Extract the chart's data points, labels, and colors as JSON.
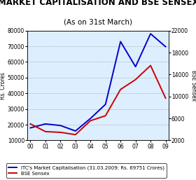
{
  "title": "MARKET CAPITALISATION AND BSE SENSEX",
  "subtitle": "(As on 31st March)",
  "years": [
    "00",
    "01",
    "02",
    "03",
    "04",
    "05",
    "06",
    "07",
    "08",
    "09"
  ],
  "market_cap": [
    18000,
    20500,
    19500,
    16000,
    24000,
    33000,
    73000,
    57000,
    78000,
    69751
  ],
  "bse_sensex": [
    5001,
    3604,
    3469,
    3049,
    5591,
    6493,
    11280,
    13072,
    15644,
    9709
  ],
  "left_ylabel": "Rs. Crores",
  "right_ylabel": "BSE Sensex",
  "ylim_left": [
    10000,
    80000
  ],
  "ylim_right": [
    2000,
    22000
  ],
  "yticks_left": [
    10000,
    20000,
    30000,
    40000,
    50000,
    60000,
    70000,
    80000
  ],
  "yticks_right": [
    2000,
    6000,
    10000,
    14000,
    18000,
    22000
  ],
  "line1_color": "#0000CC",
  "line2_color": "#CC0000",
  "legend1": "ITC's Market Capitalisation (31.03.2009: Rs. 69751 Crores)",
  "legend2": "BSE Sensex",
  "plot_bg_color": "#DDEEFF",
  "outer_bg_color": "#FFFFFF",
  "title_fontsize": 8.5,
  "subtitle_fontsize": 7.5,
  "tick_fontsize": 5.5,
  "label_fontsize": 5.5,
  "legend_fontsize": 5.0
}
